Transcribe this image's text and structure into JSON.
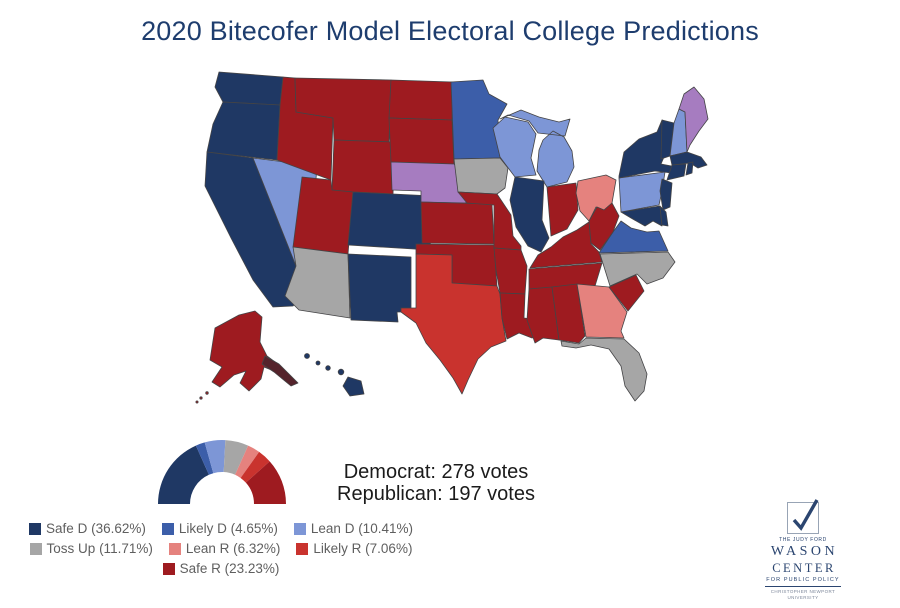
{
  "title": "2020 Bitecofer Model Electoral College Predictions",
  "title_color": "#1E3D6E",
  "results": {
    "democrat": "Democrat: 278 votes",
    "republican": "Republican: 197 votes"
  },
  "legend": [
    {
      "label": "Safe D (36.62%)",
      "color": "#1F3864"
    },
    {
      "label": "Likely D (4.65%)",
      "color": "#3C5EA9"
    },
    {
      "label": "Lean D (10.41%)",
      "color": "#7D96D6"
    },
    {
      "label": "Toss Up (11.71%)",
      "color": "#A6A6A6"
    },
    {
      "label": "Lean R (6.32%)",
      "color": "#E5827E"
    },
    {
      "label": "Likely R (7.06%)",
      "color": "#C9332E"
    },
    {
      "label": "Safe R (23.23%)",
      "color": "#9E1B20"
    }
  ],
  "map": {
    "split_color": "#A67CC0",
    "alaska_panhandle_color": "#54232B"
  },
  "chart_data": {
    "type": "pie",
    "subtype": "half-donut gauge + US choropleth",
    "title": "2020 Bitecofer Model Electoral College Predictions",
    "categories": [
      "Safe D",
      "Likely D",
      "Lean D",
      "Toss Up",
      "Lean R",
      "Likely R",
      "Safe R"
    ],
    "values": [
      36.62,
      4.65,
      10.41,
      11.71,
      6.32,
      7.06,
      23.23
    ],
    "colors": [
      "#1F3864",
      "#3C5EA9",
      "#7D96D6",
      "#A6A6A6",
      "#E5827E",
      "#C9332E",
      "#9E1B20"
    ],
    "legend_position": "bottom-left",
    "annotations": [
      "Democrat: 278 votes",
      "Republican: 197 votes"
    ],
    "choropleth_categories": {
      "Safe D": [
        "WA",
        "OR",
        "CA",
        "CO",
        "NM",
        "IL",
        "HI",
        "NY",
        "VT",
        "MA",
        "RI",
        "CT",
        "NJ",
        "DE",
        "MD"
      ],
      "Likely D": [
        "MN",
        "VA"
      ],
      "Lean D": [
        "NV",
        "WI",
        "MI",
        "PA",
        "NH"
      ],
      "Toss Up": [
        "AZ",
        "IA",
        "FL",
        "NC"
      ],
      "Lean R": [
        "OH",
        "GA"
      ],
      "Likely R": [
        "TX"
      ],
      "Safe R": [
        "ID",
        "MT",
        "WY",
        "UT",
        "ND",
        "SD",
        "KS",
        "OK",
        "MO",
        "AR",
        "LA",
        "MS",
        "AL",
        "TN",
        "KY",
        "WV",
        "IN",
        "SC",
        "AK"
      ],
      "Split": [
        "NE",
        "ME"
      ]
    }
  },
  "logo": {
    "pretitle": "THE JUDY FORD",
    "name_line1": "WASON",
    "name_line2": "CENTER",
    "subtitle": "FOR PUBLIC POLICY",
    "institution": "CHRISTOPHER NEWPORT UNIVERSITY"
  }
}
